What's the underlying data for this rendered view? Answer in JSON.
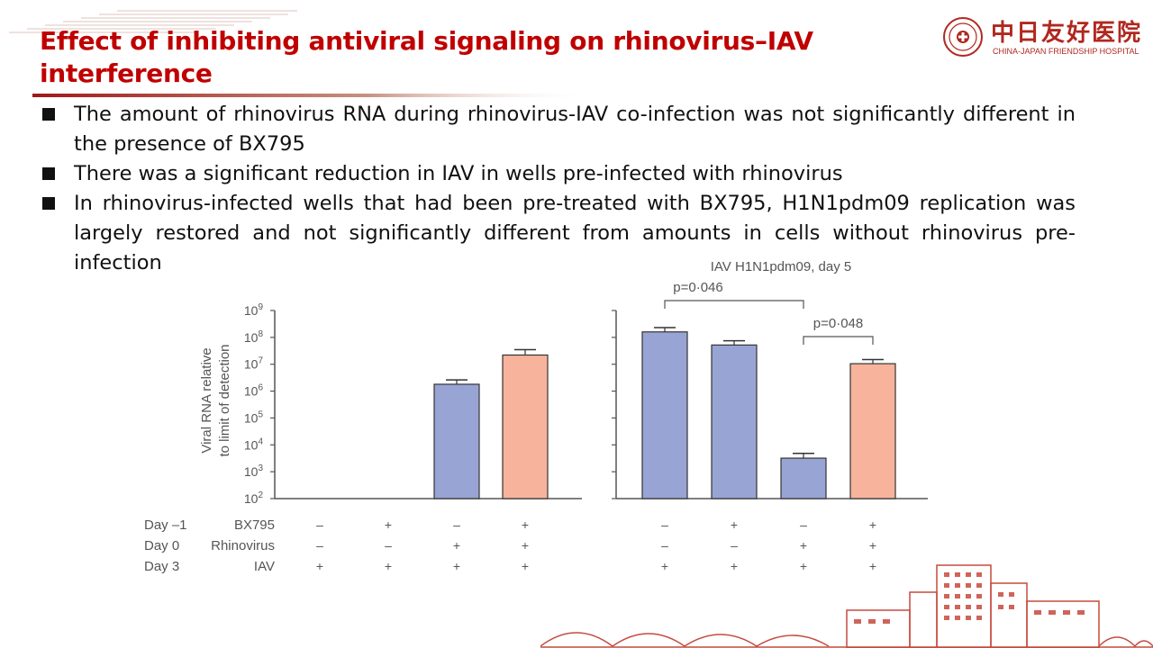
{
  "slide": {
    "title": "Effect of inhibiting antiviral signaling on rhinovirus–IAV interference",
    "bullets": [
      "The amount of rhinovirus RNA during rhinovirus-IAV co-infection was not significantly different in the presence of BX795",
      "There was a significant reduction in IAV in wells pre-infected with rhinovirus",
      "In rhinovirus-infected wells that had been pre-treated with BX795, H1N1pdm09 replication was largely restored and not significantly different from amounts in cells without rhinovirus pre-infection"
    ]
  },
  "logo": {
    "cn": "中日友好医院",
    "en": "CHINA-JAPAN FRIENDSHIP HOSPITAL",
    "color": "#b0281f"
  },
  "chart_data": {
    "type": "bar",
    "y_scale": "log",
    "ylabel": "Viral RNA relative to limit of detection",
    "ylim": [
      100,
      1000000000
    ],
    "yticks": [
      {
        "value": 100,
        "base": "10",
        "exp": "2"
      },
      {
        "value": 1000,
        "base": "10",
        "exp": "3"
      },
      {
        "value": 10000,
        "base": "10",
        "exp": "4"
      },
      {
        "value": 100000,
        "base": "10",
        "exp": "5"
      },
      {
        "value": 1000000,
        "base": "10",
        "exp": "6"
      },
      {
        "value": 10000000,
        "base": "10",
        "exp": "7"
      },
      {
        "value": 100000000,
        "base": "10",
        "exp": "8"
      },
      {
        "value": 1000000000,
        "base": "10",
        "exp": "9"
      }
    ],
    "conditions": [
      {
        "day": "Day –1",
        "label": "BX795",
        "values": [
          "–",
          "+",
          "–",
          "+"
        ]
      },
      {
        "day": "Day 0",
        "label": "Rhinovirus",
        "values": [
          "–",
          "–",
          "+",
          "+"
        ]
      },
      {
        "day": "Day 3",
        "label": "IAV",
        "values": [
          "+",
          "+",
          "+",
          "+"
        ]
      }
    ],
    "colors": {
      "no_bx795": "#98a4d3",
      "bx795": "#f7b39b"
    },
    "panels": [
      {
        "title": "",
        "bars": [
          {
            "value": null
          },
          {
            "value": null
          },
          {
            "value": 1800000,
            "error": 2600000,
            "color": "#98a4d3"
          },
          {
            "value": 22000000,
            "error": 35000000,
            "color": "#f7b39b"
          }
        ],
        "comparisons": []
      },
      {
        "title": "IAV H1N1pdm09, day 5",
        "bars": [
          {
            "value": 160000000,
            "error": 230000000,
            "color": "#98a4d3"
          },
          {
            "value": 52000000,
            "error": 75000000,
            "color": "#98a4d3"
          },
          {
            "value": 3200,
            "error": 4800,
            "color": "#98a4d3"
          },
          {
            "value": 10500000,
            "error": 15000000,
            "color": "#f7b39b"
          }
        ],
        "comparisons": [
          {
            "from": 0,
            "to": 2,
            "label": "p=0·046"
          },
          {
            "from": 2,
            "to": 3,
            "label": "p=0·048"
          }
        ]
      }
    ]
  }
}
